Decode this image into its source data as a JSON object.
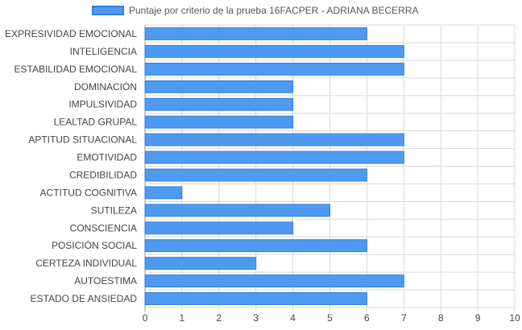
{
  "chart_data": {
    "type": "bar",
    "orientation": "horizontal",
    "title": "",
    "legend": {
      "label": "Puntaje por criterio de la prueba 16FACPER - ADRIANA BECERRA",
      "position": "top"
    },
    "categories": [
      "EXPRESIVIDAD EMOCIONAL",
      "INTELIGENCIA",
      "ESTABILIDAD EMOCIONAL",
      "DOMINACIÓN",
      "IMPULSIVIDAD",
      "LEALTAD GRUPAL",
      "APTITUD SITUACIONAL",
      "EMOTIVIDAD",
      "CREDIBILIDAD",
      "ACTITUD COGNITIVA",
      "SUTILEZA",
      "CONSCIENCIA",
      "POSICIÓN SOCIAL",
      "CERTEZA INDIVIDUAL",
      "AUTOESTIMA",
      "ESTADO DE ANSIEDAD"
    ],
    "series": [
      {
        "name": "Puntaje por criterio de la prueba 16FACPER - ADRIANA BECERRA",
        "values": [
          6,
          7,
          7,
          4,
          4,
          4,
          7,
          7,
          6,
          1,
          5,
          4,
          6,
          3,
          7,
          6
        ]
      }
    ],
    "xlim": [
      0,
      10
    ],
    "xticks": [
      0,
      1,
      2,
      3,
      4,
      5,
      6,
      7,
      8,
      9,
      10
    ],
    "grid": true,
    "colors": {
      "bar_fill": "#4e9af1",
      "bar_border": "#2f7fe0",
      "grid": "#d9d9d9",
      "text": "#444444"
    }
  }
}
